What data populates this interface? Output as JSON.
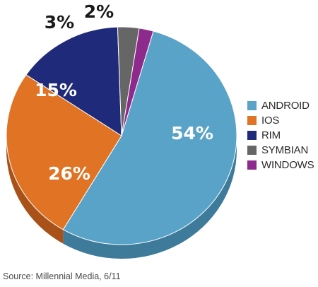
{
  "chart_data": {
    "type": "pie",
    "style": "3d-tilted",
    "slices": [
      {
        "name": "ANDROID",
        "value": 54,
        "label": "54%",
        "color": "#5aa3c8",
        "side_color": "#3e7b9b",
        "label_color": "#ffffff"
      },
      {
        "name": "IOS",
        "value": 26,
        "label": "26%",
        "color": "#e07424",
        "side_color": "#a8521a",
        "label_color": "#ffffff"
      },
      {
        "name": "RIM",
        "value": 15,
        "label": "15%",
        "color": "#1f2a7a",
        "side_color": "#141c55",
        "label_color": "#ffffff"
      },
      {
        "name": "SYMBIAN",
        "value": 3,
        "label": "3%",
        "color": "#666666",
        "side_color": "#444444",
        "label_color": "#1a1a1a"
      },
      {
        "name": "WINDOWS",
        "value": 2,
        "label": "2%",
        "color": "#8e2a8c",
        "side_color": "#5e1c5d",
        "label_color": "#1a1a1a"
      }
    ],
    "legend_position": "right",
    "source": "Source: Millennial Media, 6/11"
  }
}
